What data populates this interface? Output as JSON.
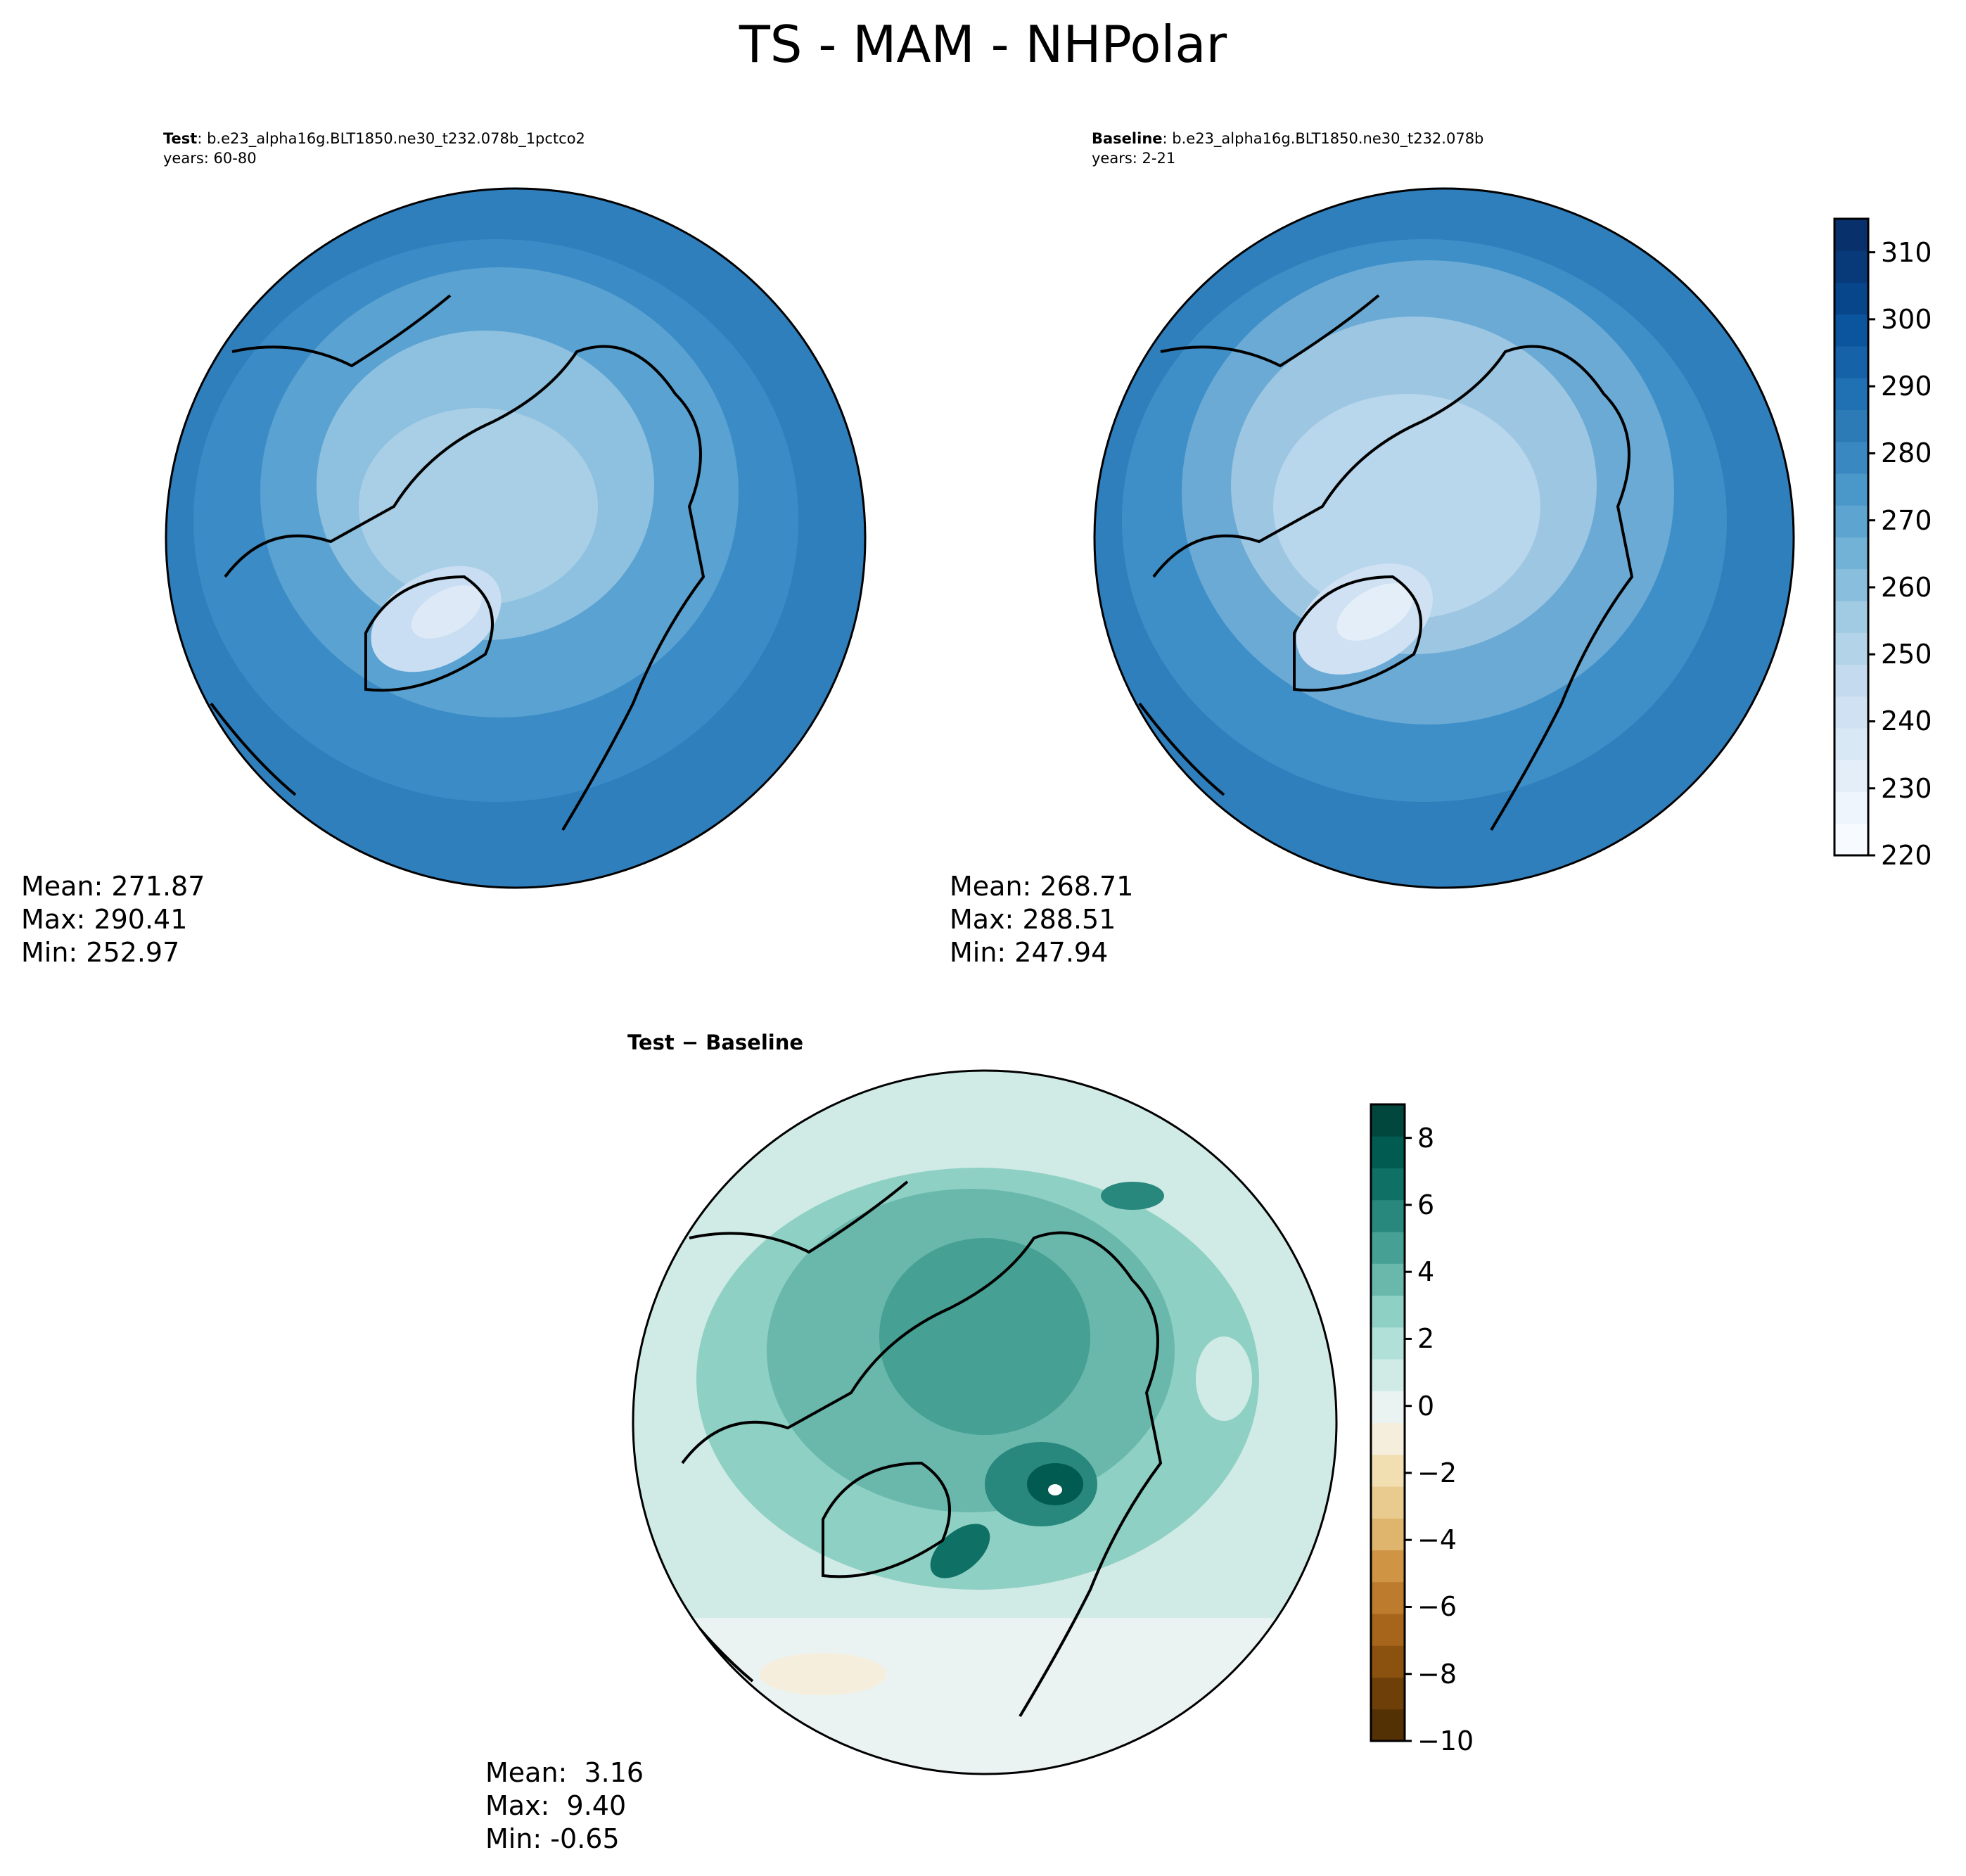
{
  "figure": {
    "title": "TS - MAM - NHPolar"
  },
  "panels": {
    "test": {
      "label": "Test",
      "case": "b.e23_alpha16g.BLT1850.ne30_t232.078b_1pctco2",
      "years": "years: 60-80",
      "stats": {
        "mean": "Mean: 271.87",
        "max": "Max: 290.41",
        "min": "Min: 252.97"
      }
    },
    "baseline": {
      "label": "Baseline",
      "case": "b.e23_alpha16g.BLT1850.ne30_t232.078b",
      "years": "years: 2-21",
      "stats": {
        "mean": "Mean: 268.71",
        "max": "Max: 288.51",
        "min": "Min: 247.94"
      }
    },
    "diff": {
      "label_a": "Test",
      "label_op": " − ",
      "label_b": "Baseline",
      "stats": {
        "mean": "Mean:  3.16",
        "max": "Max:  9.40",
        "min": "Min: -0.65"
      }
    }
  },
  "chart_data": [
    {
      "type": "heatmap",
      "name": "Test",
      "projection": "north-polar-stereographic",
      "stats": {
        "mean": 271.87,
        "max": 290.41,
        "min": 252.97
      },
      "colorbar": "shared-absolute"
    },
    {
      "type": "heatmap",
      "name": "Baseline",
      "projection": "north-polar-stereographic",
      "stats": {
        "mean": 268.71,
        "max": 288.51,
        "min": 247.94
      },
      "colorbar": "shared-absolute"
    },
    {
      "type": "heatmap",
      "name": "Test − Baseline",
      "projection": "north-polar-stereographic",
      "stats": {
        "mean": 3.16,
        "max": 9.4,
        "min": -0.65
      },
      "colorbar": "difference"
    }
  ],
  "colorbars": {
    "absolute": {
      "range": [
        220,
        315
      ],
      "ticks": [
        220,
        230,
        240,
        250,
        260,
        270,
        280,
        290,
        300,
        310
      ],
      "tick_labels": [
        "220",
        "230",
        "240",
        "250",
        "260",
        "270",
        "280",
        "290",
        "300",
        "310"
      ],
      "colormap": "Blues",
      "colors": [
        "#f7fbff",
        "#eef5fc",
        "#e3eef9",
        "#d9e8f5",
        "#cfe1f2",
        "#c4daee",
        "#b3d3e8",
        "#a0cbe2",
        "#89bedc",
        "#72b2d7",
        "#5da4d0",
        "#4a97c9",
        "#3a88c1",
        "#2c7bb6",
        "#2070b4",
        "#1562a9",
        "#0b559f",
        "#08468b",
        "#083a7a",
        "#08306b"
      ]
    },
    "difference": {
      "range": [
        -10,
        9
      ],
      "ticks": [
        -10,
        -8,
        -6,
        -4,
        -2,
        0,
        2,
        4,
        6,
        8
      ],
      "tick_labels": [
        "−10",
        "−8",
        "−6",
        "−4",
        "−2",
        "0",
        "2",
        "4",
        "6",
        "8"
      ],
      "colormap": "BrBG",
      "colors": [
        "#543005",
        "#6f3f09",
        "#8b520f",
        "#a7641b",
        "#bd7b2e",
        "#cf9545",
        "#dfb56d",
        "#e9cb8f",
        "#f1dfb2",
        "#f6eedc",
        "#eaf3f1",
        "#d0ebe6",
        "#b1e0d8",
        "#8fd0c4",
        "#6ab8ac",
        "#46a094",
        "#28887d",
        "#0f7166",
        "#015b51",
        "#01473d"
      ]
    }
  }
}
